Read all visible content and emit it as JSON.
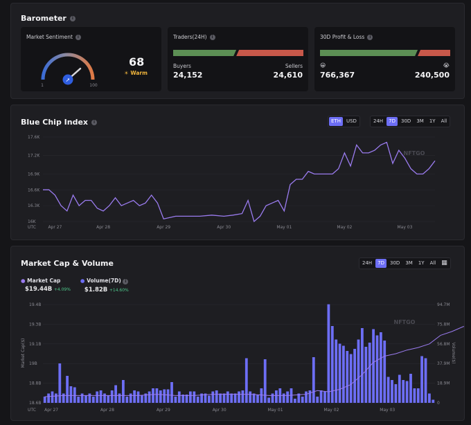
{
  "barometer": {
    "title": "Barometer",
    "sentiment": {
      "label": "Market Sentiment",
      "value": "68",
      "status": "Warm",
      "min": "1",
      "max": "100",
      "gauge_fraction": 0.68
    },
    "traders": {
      "label": "Traders(24H)",
      "buyers_label": "Buyers",
      "sellers_label": "Sellers",
      "buyers": "24,152",
      "sellers": "24,610",
      "buyer_fraction": 0.4953
    },
    "profit_loss": {
      "label": "30D Profit & Loss",
      "profit_icon": "😀",
      "loss_icon": "😭",
      "profit": "766,367",
      "loss": "240,500",
      "profit_fraction": 0.7611
    }
  },
  "blue_chip": {
    "title": "Blue Chip Index",
    "currency_options": [
      "ETH",
      "USD"
    ],
    "currency_selected": "ETH",
    "range_options": [
      "24H",
      "7D",
      "30D",
      "3M",
      "1Y",
      "All"
    ],
    "range_selected": "7D",
    "watermark": "NFTGO"
  },
  "market_cap": {
    "title": "Market Cap & Volume",
    "range_options": [
      "24H",
      "7D",
      "30D",
      "3M",
      "1Y",
      "All"
    ],
    "range_selected": "7D",
    "watermark": "NFTGO",
    "legend": [
      {
        "name": "Market Cap",
        "value": "$19.44B",
        "change": "+4.09%"
      },
      {
        "name": "Volume(7D)",
        "value": "$1.82B",
        "change": "+14.60%"
      }
    ]
  },
  "chart_data": [
    {
      "type": "line",
      "title": "Blue Chip Index",
      "xlabel": "UTC",
      "ylim": [
        16.0,
        17.6
      ],
      "yticks": [
        "17.6K",
        "17.2K",
        "16.9K",
        "16.6K",
        "16.3K",
        "16K"
      ],
      "ytick_values": [
        17.6,
        17.25,
        16.9,
        16.6,
        16.3,
        16.0
      ],
      "xticks": [
        "Apr 27",
        "Apr 28",
        "Apr 29",
        "Apr 30",
        "May 01",
        "May 02",
        "May 03"
      ],
      "xtick_pos": [
        0.2,
        1.0,
        2.0,
        3.0,
        4.0,
        5.0,
        6.0
      ],
      "color": "#9b7cf0",
      "series": [
        {
          "name": "Index",
          "x": [
            0.0,
            0.1,
            0.2,
            0.3,
            0.4,
            0.5,
            0.6,
            0.7,
            0.8,
            0.9,
            1.0,
            1.1,
            1.2,
            1.3,
            1.4,
            1.5,
            1.6,
            1.7,
            1.8,
            1.9,
            2.0,
            2.2,
            2.4,
            2.6,
            2.8,
            3.0,
            3.15,
            3.3,
            3.4,
            3.5,
            3.6,
            3.7,
            3.8,
            3.9,
            4.0,
            4.1,
            4.2,
            4.3,
            4.4,
            4.5,
            4.6,
            4.7,
            4.8,
            4.9,
            5.0,
            5.1,
            5.2,
            5.3,
            5.4,
            5.5,
            5.6,
            5.7,
            5.8,
            5.9,
            6.0,
            6.1,
            6.2,
            6.3,
            6.4,
            6.5
          ],
          "values": [
            16.6,
            16.6,
            16.5,
            16.3,
            16.2,
            16.5,
            16.3,
            16.4,
            16.4,
            16.25,
            16.2,
            16.3,
            16.45,
            16.3,
            16.35,
            16.4,
            16.3,
            16.35,
            16.5,
            16.35,
            16.05,
            16.1,
            16.1,
            16.1,
            16.12,
            16.1,
            16.12,
            16.15,
            16.4,
            16.0,
            16.1,
            16.3,
            16.35,
            16.4,
            16.2,
            16.7,
            16.8,
            16.8,
            16.95,
            16.9,
            16.9,
            16.9,
            16.9,
            17.0,
            17.3,
            17.05,
            17.45,
            17.3,
            17.3,
            17.35,
            17.45,
            17.5,
            17.1,
            17.35,
            17.2,
            17.0,
            16.9,
            16.9,
            17.0,
            17.15
          ]
        }
      ]
    },
    {
      "type": "bar",
      "title": "Market Cap & Volume",
      "xlabel": "UTC",
      "ylabel_left": "Market Cap($)",
      "ylabel_right": "Volume($)",
      "yticks_left": [
        "19.4B",
        "19.3B",
        "19.1B",
        "19B",
        "18.8B",
        "18.6B"
      ],
      "yticks_right": [
        "94.7M",
        "75.8M",
        "56.8M",
        "37.9M",
        "18.9M",
        "0"
      ],
      "ylim_left": [
        18.6,
        19.4
      ],
      "ylim_right": [
        0,
        94.7
      ],
      "xticks": [
        "Apr 27",
        "Apr 28",
        "Apr 29",
        "Apr 30",
        "May 01",
        "May 02",
        "May 03"
      ],
      "series": [
        {
          "name": "Volume(7D)",
          "unit": "M",
          "color": "#6d6ef5",
          "values": [
            6,
            9,
            11,
            9,
            38,
            9,
            26,
            16,
            15,
            6,
            9,
            7,
            9,
            6,
            11,
            12,
            9,
            7,
            12,
            17,
            9,
            22,
            6,
            9,
            12,
            11,
            7,
            9,
            11,
            14,
            14,
            12,
            13,
            13,
            20,
            6,
            11,
            8,
            8,
            11,
            11,
            6,
            9,
            9,
            7,
            11,
            12,
            9,
            9,
            11,
            9,
            9,
            11,
            12,
            43,
            11,
            9,
            8,
            14,
            42,
            5,
            9,
            12,
            14,
            9,
            11,
            14,
            4,
            9,
            6,
            11,
            12,
            44,
            6,
            12,
            11,
            95,
            74,
            61,
            57,
            55,
            50,
            47,
            52,
            61,
            72,
            54,
            58,
            71,
            65,
            68,
            60,
            25,
            22,
            18,
            27,
            22,
            21,
            28,
            14,
            14,
            45,
            43,
            9,
            3
          ]
        },
        {
          "name": "Market Cap",
          "unit": "B",
          "color": "#9b7cf0",
          "x": [
            0,
            5,
            10,
            15,
            20,
            25,
            30,
            35,
            40,
            45,
            50,
            55,
            60,
            65,
            70,
            73,
            76,
            79,
            82,
            85,
            88,
            91,
            94,
            97,
            100,
            103,
            106,
            109,
            112,
            115,
            118,
            121,
            124,
            127,
            130,
            133,
            136,
            139,
            142,
            145,
            148,
            151,
            154,
            157
          ],
          "values": [
            18.65,
            18.66,
            18.66,
            18.66,
            18.66,
            18.66,
            18.67,
            18.66,
            18.66,
            18.67,
            18.67,
            18.67,
            18.66,
            18.66,
            18.67,
            18.7,
            18.69,
            18.71,
            18.75,
            18.83,
            18.93,
            18.98,
            19.0,
            19.03,
            19.05,
            19.08,
            19.15,
            19.18,
            19.22,
            19.24,
            19.26,
            19.28,
            19.3,
            19.31,
            19.34,
            19.35,
            19.36,
            19.37,
            19.38,
            19.39,
            19.4,
            19.41,
            19.42,
            19.41
          ]
        }
      ]
    }
  ]
}
